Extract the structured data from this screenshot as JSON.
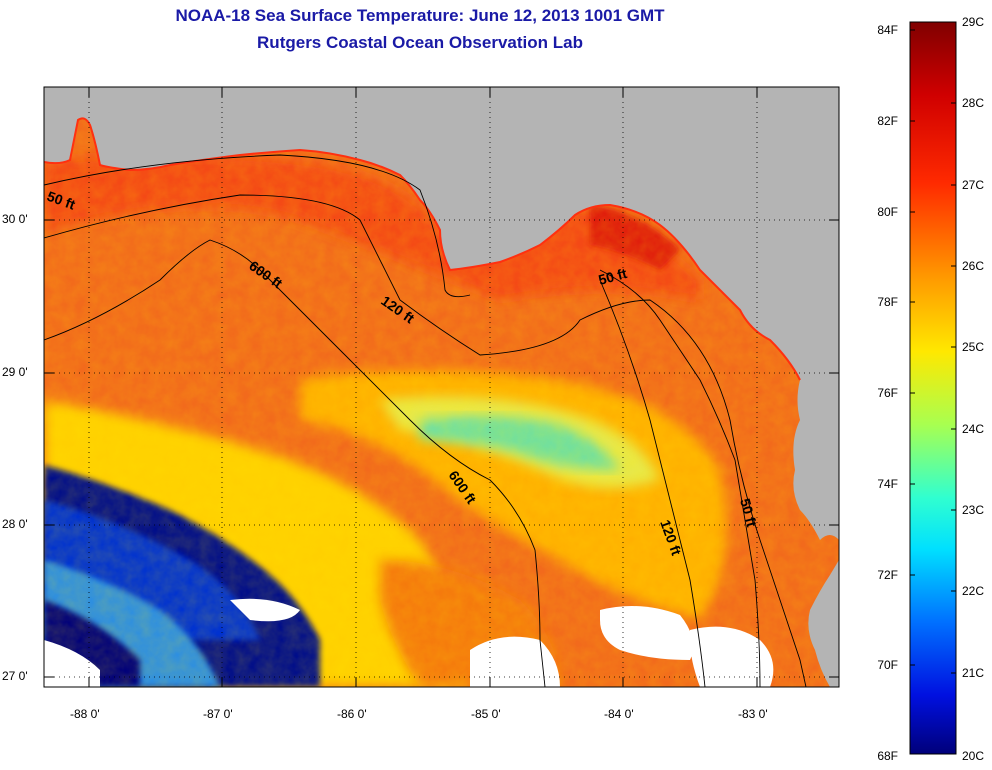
{
  "title": "NOAA-18 Sea Surface Temperature:  June 12, 2013 1001 GMT",
  "subtitle": "Rutgers Coastal Ocean Observation Lab",
  "map": {
    "region": "Gulf of Mexico - Florida Big Bend",
    "lon_ticks": [
      "-88 0'",
      "-87 0'",
      "-86 0'",
      "-85 0'",
      "-84 0'",
      "-83 0'"
    ],
    "lat_ticks": [
      "30 0'",
      "29 0'",
      "28 0'",
      "27 0'"
    ],
    "depth_labels": [
      "50 ft",
      "600 ft",
      "120 ft",
      "50 ft",
      "600 ft",
      "120 ft",
      "50 ft"
    ]
  },
  "colorbar": {
    "fahrenheit": [
      "84F",
      "82F",
      "80F",
      "78F",
      "76F",
      "74F",
      "72F",
      "70F",
      "68F"
    ],
    "celsius": [
      "29C",
      "28C",
      "27C",
      "26C",
      "25C",
      "24C",
      "23C",
      "22C",
      "21C",
      "20C"
    ]
  },
  "colors": {
    "title": "#1a1aa6",
    "land": "#b4b4b4",
    "warm": "#f06a1c",
    "cool": "#3fd6b0",
    "cold": "#00007a"
  }
}
